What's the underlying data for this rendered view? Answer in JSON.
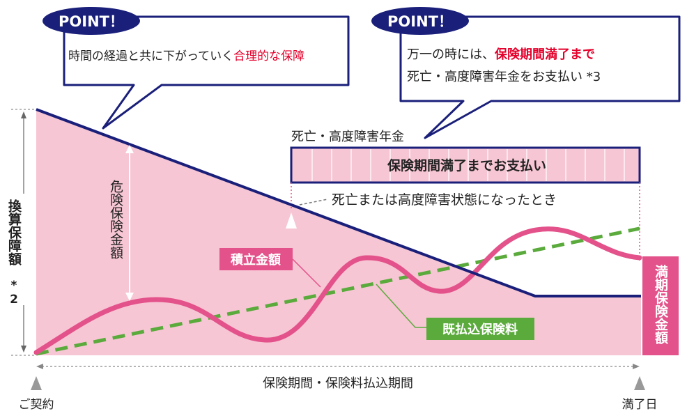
{
  "callouts": {
    "left": {
      "badge": "POINT！",
      "text_plain": "時間の経過と共に下がっていく",
      "text_red": "合理的な保障"
    },
    "right": {
      "badge": "POINT！",
      "line1_plain": "万一の時には、",
      "line1_red": "保険期間満了まで",
      "line2": "死亡・高度障害年金をお支払い *3"
    }
  },
  "labels": {
    "pension_title": "死亡・高度障害年金",
    "pension_bar": "保険期間満了までお支払い",
    "death_event": "死亡または高度障害状態になったとき",
    "risk_amount": "危険保険金額",
    "accumulated": "積立金額",
    "paid_premium": "既払込保険料",
    "maturity_amount": "満期保険金額",
    "y_axis_main": "換算保障額",
    "y_axis_note": "*2",
    "period": "保険期間・保険料払込期間",
    "start": "ご契約",
    "end": "満了日"
  },
  "colors": {
    "navy": "#1a1f7a",
    "pink_fill": "#f7c6d4",
    "pink_line": "#e3528a",
    "green": "#5aaa3c",
    "red_text": "#e4002b",
    "gray": "#888888"
  }
}
